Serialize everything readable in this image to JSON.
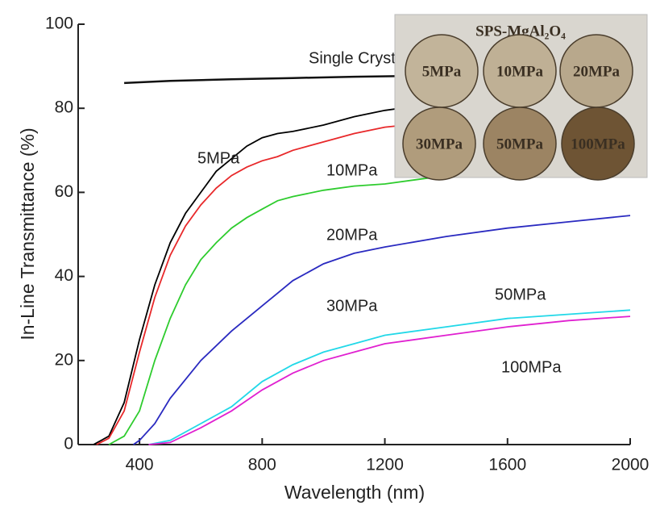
{
  "chart_data": {
    "type": "line",
    "x_label": "Wavelength (nm)",
    "y_label": "In-Line Transmittance (%)",
    "xlim": [
      200,
      2000
    ],
    "ylim": [
      0,
      100
    ],
    "xticks": [
      400,
      800,
      1200,
      1600,
      2000
    ],
    "yticks": [
      0,
      20,
      40,
      60,
      80,
      100
    ],
    "series": [
      {
        "name": "Single Crystal",
        "color": "#111111",
        "x": [
          350,
          500,
          700,
          900,
          1100,
          1300,
          1500,
          1700,
          2000
        ],
        "values": [
          86,
          86.5,
          86.9,
          87.2,
          87.5,
          87.7,
          87.9,
          88,
          88.2
        ]
      },
      {
        "name": "5MPa",
        "color": "#000000",
        "x": [
          250,
          300,
          350,
          400,
          450,
          500,
          550,
          600,
          650,
          700,
          750,
          800,
          850,
          900,
          1000,
          1100,
          1200,
          1300,
          1500,
          2000
        ],
        "values": [
          0,
          2,
          10,
          25,
          38,
          48,
          55,
          60,
          65,
          68,
          71,
          73,
          74,
          74.5,
          76,
          78,
          79.5,
          80.5,
          82,
          84
        ]
      },
      {
        "name": "10MPa",
        "color": "#e8282a",
        "x": [
          260,
          300,
          350,
          400,
          450,
          500,
          550,
          600,
          650,
          700,
          750,
          800,
          850,
          900,
          1000,
          1100,
          1200,
          1400,
          2000
        ],
        "values": [
          0,
          1.5,
          8,
          22,
          35,
          45,
          52,
          57,
          61,
          64,
          66,
          67.5,
          68.5,
          70,
          72,
          74,
          75.5,
          77,
          80
        ]
      },
      {
        "name": "20MPa",
        "color": "#2ecc2e",
        "x": [
          300,
          350,
          400,
          450,
          500,
          550,
          600,
          650,
          700,
          750,
          800,
          850,
          900,
          1000,
          1100,
          1200,
          1300,
          1400,
          2000
        ],
        "values": [
          0,
          2,
          8,
          20,
          30,
          38,
          44,
          48,
          51.5,
          54,
          56,
          58,
          59,
          60.5,
          61.5,
          62,
          63,
          64,
          67
        ]
      },
      {
        "name": "30MPa",
        "color": "#2a2ac0",
        "x": [
          380,
          400,
          450,
          500,
          600,
          700,
          800,
          850,
          900,
          1000,
          1100,
          1200,
          1400,
          1600,
          1800,
          2000
        ],
        "values": [
          0,
          1,
          5,
          11,
          20,
          27,
          33,
          36,
          39,
          43,
          45.5,
          47,
          49.5,
          51.5,
          53,
          54.5
        ]
      },
      {
        "name": "50MPa",
        "color": "#22d8e8",
        "x": [
          430,
          500,
          600,
          700,
          800,
          900,
          1000,
          1100,
          1200,
          1400,
          1600,
          1800,
          2000
        ],
        "values": [
          0,
          1,
          5,
          9,
          15,
          19,
          22,
          24,
          26,
          28,
          30,
          31,
          32
        ]
      },
      {
        "name": "100MPa",
        "color": "#e020d0",
        "x": [
          430,
          500,
          600,
          700,
          800,
          900,
          1000,
          1100,
          1200,
          1400,
          1600,
          1800,
          2000
        ],
        "values": [
          0,
          0.5,
          4,
          8,
          13,
          17,
          20,
          22,
          24,
          26,
          28,
          29.5,
          30.5
        ]
      }
    ],
    "inset": {
      "title": "SPS-MgAl₂O₄",
      "labels": [
        "5MPa",
        "10MPa",
        "20MPa",
        "30MPa",
        "50MPa",
        "100MPa"
      ]
    }
  }
}
